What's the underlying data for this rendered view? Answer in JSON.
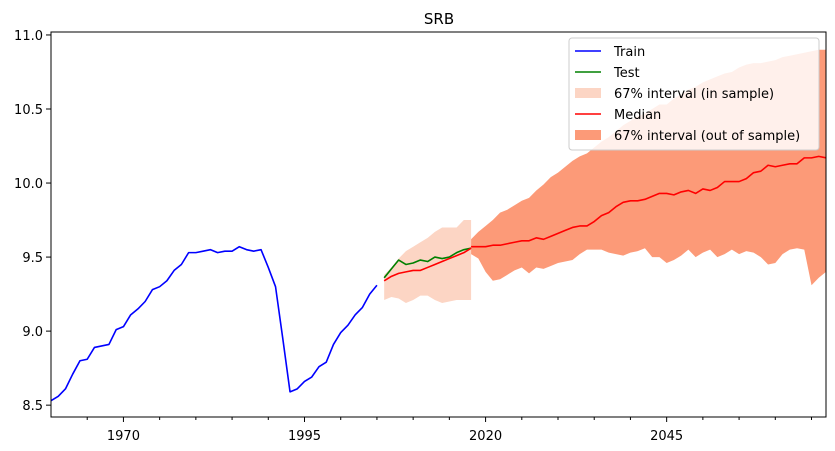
{
  "chart_data": {
    "type": "line",
    "title": "SRB",
    "xlabel": "",
    "ylabel": "",
    "xlim": [
      1960,
      2067
    ],
    "ylim": [
      8.42,
      11.02
    ],
    "x_ticks": [
      1970,
      1995,
      2020,
      2045
    ],
    "y_ticks": [
      8.5,
      9.0,
      9.5,
      10.0,
      10.5,
      11.0
    ],
    "y_tick_labels": [
      "8.5",
      "9.0",
      "9.5",
      "10.0",
      "10.5",
      "11.0"
    ],
    "grid": false,
    "legend_position": "top-right",
    "colors": {
      "train": "#0000ff",
      "test": "#008000",
      "median": "#ff0000",
      "interval_in": "#fcd5c4",
      "interval_out": "#fc9a78"
    },
    "legend": [
      {
        "label": "Train",
        "kind": "line",
        "series": "train"
      },
      {
        "label": "Test",
        "kind": "line",
        "series": "test"
      },
      {
        "label": "67% interval (in sample)",
        "kind": "patch",
        "series": "interval_in"
      },
      {
        "label": "Median",
        "kind": "line",
        "series": "median"
      },
      {
        "label": "67% interval (out of sample)",
        "kind": "patch",
        "series": "interval_out"
      }
    ],
    "series": {
      "train": {
        "x": [
          1960,
          1961,
          1962,
          1963,
          1964,
          1965,
          1966,
          1967,
          1968,
          1969,
          1970,
          1971,
          1972,
          1973,
          1974,
          1975,
          1976,
          1977,
          1978,
          1979,
          1980,
          1981,
          1982,
          1983,
          1984,
          1985,
          1986,
          1987,
          1988,
          1989,
          1990,
          1991,
          1992,
          1993,
          1994,
          1995,
          1996,
          1997,
          1998,
          1999,
          2000,
          2001,
          2002,
          2003,
          2004,
          2005
        ],
        "y": [
          8.53,
          8.56,
          8.61,
          8.71,
          8.8,
          8.81,
          8.89,
          8.9,
          8.91,
          9.01,
          9.03,
          9.11,
          9.15,
          9.2,
          9.28,
          9.3,
          9.34,
          9.41,
          9.45,
          9.53,
          9.53,
          9.54,
          9.55,
          9.53,
          9.54,
          9.54,
          9.57,
          9.55,
          9.54,
          9.55,
          9.43,
          9.3,
          8.95,
          8.59,
          8.61,
          8.66,
          8.69,
          8.76,
          8.79,
          8.91,
          8.99,
          9.04,
          9.11,
          9.16,
          9.25,
          9.31
        ]
      },
      "test": {
        "x": [
          2006,
          2007,
          2008,
          2009,
          2010,
          2011,
          2012,
          2013,
          2014,
          2015,
          2016,
          2017,
          2018
        ],
        "y": [
          9.36,
          9.42,
          9.48,
          9.45,
          9.46,
          9.48,
          9.47,
          9.5,
          9.49,
          9.5,
          9.53,
          9.55,
          9.56
        ]
      },
      "median_in": {
        "x": [
          2006,
          2007,
          2008,
          2009,
          2010,
          2011,
          2012,
          2013,
          2014,
          2015,
          2016,
          2017,
          2018
        ],
        "y": [
          9.34,
          9.37,
          9.39,
          9.4,
          9.41,
          9.41,
          9.43,
          9.45,
          9.47,
          9.49,
          9.51,
          9.53,
          9.56
        ]
      },
      "interval_in": {
        "x": [
          2006,
          2007,
          2008,
          2009,
          2010,
          2011,
          2012,
          2013,
          2014,
          2015,
          2016,
          2017,
          2018
        ],
        "lower": [
          9.21,
          9.23,
          9.22,
          9.19,
          9.21,
          9.24,
          9.24,
          9.21,
          9.19,
          9.2,
          9.21,
          9.21,
          9.21
        ],
        "upper": [
          9.38,
          9.43,
          9.49,
          9.54,
          9.57,
          9.6,
          9.63,
          9.67,
          9.7,
          9.7,
          9.7,
          9.75,
          9.75
        ]
      },
      "median_out": {
        "x": [
          2018,
          2019,
          2020,
          2021,
          2022,
          2023,
          2024,
          2025,
          2026,
          2027,
          2028,
          2029,
          2030,
          2031,
          2032,
          2033,
          2034,
          2035,
          2036,
          2037,
          2038,
          2039,
          2040,
          2041,
          2042,
          2043,
          2044,
          2045,
          2046,
          2047,
          2048,
          2049,
          2050,
          2051,
          2052,
          2053,
          2054,
          2055,
          2056,
          2057,
          2058,
          2059,
          2060,
          2061,
          2062,
          2063,
          2064,
          2065,
          2066,
          2067
        ],
        "y": [
          9.57,
          9.57,
          9.57,
          9.58,
          9.58,
          9.59,
          9.6,
          9.61,
          9.61,
          9.63,
          9.62,
          9.64,
          9.66,
          9.68,
          9.7,
          9.71,
          9.71,
          9.74,
          9.78,
          9.8,
          9.84,
          9.87,
          9.88,
          9.88,
          9.89,
          9.91,
          9.93,
          9.93,
          9.92,
          9.94,
          9.95,
          9.93,
          9.96,
          9.95,
          9.97,
          10.01,
          10.01,
          10.01,
          10.03,
          10.07,
          10.08,
          10.12,
          10.11,
          10.12,
          10.13,
          10.13,
          10.17,
          10.17,
          10.18,
          10.17
        ]
      },
      "interval_out": {
        "x": [
          2018,
          2019,
          2020,
          2021,
          2022,
          2023,
          2024,
          2025,
          2026,
          2027,
          2028,
          2029,
          2030,
          2031,
          2032,
          2033,
          2034,
          2035,
          2036,
          2037,
          2038,
          2039,
          2040,
          2041,
          2042,
          2043,
          2044,
          2045,
          2046,
          2047,
          2048,
          2049,
          2050,
          2051,
          2052,
          2053,
          2054,
          2055,
          2056,
          2057,
          2058,
          2059,
          2060,
          2061,
          2062,
          2063,
          2064,
          2065,
          2066,
          2067
        ],
        "lower": [
          9.52,
          9.49,
          9.4,
          9.34,
          9.35,
          9.38,
          9.41,
          9.43,
          9.39,
          9.43,
          9.42,
          9.44,
          9.46,
          9.47,
          9.48,
          9.52,
          9.55,
          9.55,
          9.55,
          9.53,
          9.52,
          9.51,
          9.53,
          9.54,
          9.56,
          9.5,
          9.5,
          9.46,
          9.48,
          9.51,
          9.55,
          9.5,
          9.53,
          9.55,
          9.5,
          9.52,
          9.55,
          9.52,
          9.54,
          9.53,
          9.5,
          9.45,
          9.46,
          9.52,
          9.55,
          9.56,
          9.55,
          9.31,
          9.36,
          9.4
        ],
        "upper": [
          9.62,
          9.67,
          9.71,
          9.75,
          9.8,
          9.82,
          9.85,
          9.88,
          9.9,
          9.95,
          9.99,
          10.04,
          10.07,
          10.11,
          10.15,
          10.18,
          10.2,
          10.24,
          10.28,
          10.31,
          10.35,
          10.39,
          10.42,
          10.45,
          10.47,
          10.5,
          10.53,
          10.53,
          10.57,
          10.6,
          10.63,
          10.65,
          10.68,
          10.7,
          10.72,
          10.74,
          10.75,
          10.78,
          10.8,
          10.81,
          10.81,
          10.82,
          10.83,
          10.85,
          10.86,
          10.87,
          10.88,
          10.89,
          10.9,
          10.9
        ]
      }
    }
  }
}
